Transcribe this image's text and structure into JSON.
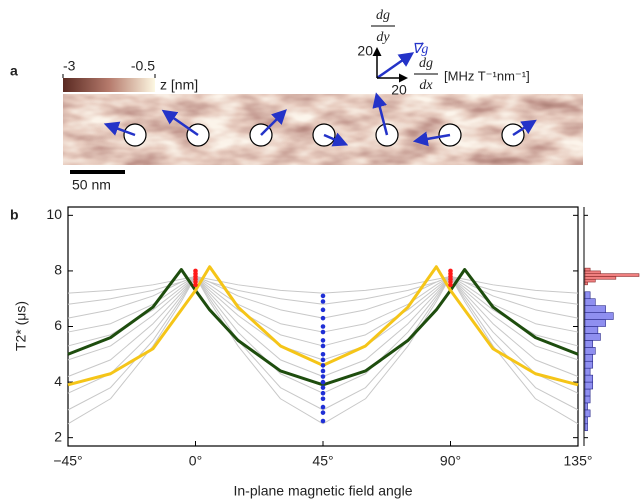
{
  "chart_data": [
    {
      "type": "vector_map",
      "panel_label": "a",
      "colorbar": {
        "label": "z [nm]",
        "lim": [
          -3,
          -0.5
        ],
        "ticks": [
          -3,
          -0.5
        ],
        "colors": [
          "#5a2a22",
          "#b57a6c",
          "#fdf8e2"
        ]
      },
      "scale_bar": "50 nm",
      "vectors": {
        "color": "#2433c8",
        "dx": [
          -19,
          -23,
          16,
          14,
          -7,
          -23,
          14
        ],
        "dy": [
          7,
          16,
          16,
          -6,
          27,
          -4,
          9
        ]
      },
      "legend": {
        "x_label": {
          "numerator": "dg",
          "denominator": "dx"
        },
        "y_label": {
          "numerator": "dg",
          "denominator": "dy"
        },
        "x_tick": 20,
        "y_tick": 20,
        "vector_label": "∇⃗g",
        "units": "[MHz T⁻¹nm⁻¹]"
      }
    },
    {
      "type": "line",
      "panel_label": "b",
      "xlabel": "In-plane magnetic field angle",
      "ylabel": "T2* (μs)",
      "xlim": [
        -45,
        135
      ],
      "ylim": [
        1.7,
        10.3
      ],
      "xticks": [
        {
          "value": -45,
          "label": "−45°"
        },
        {
          "value": 0,
          "label": "0°"
        },
        {
          "value": 45,
          "label": "45°"
        },
        {
          "value": 90,
          "label": "90°"
        },
        {
          "value": 135,
          "label": "135°"
        }
      ],
      "yticks": [
        2,
        4,
        6,
        8,
        10
      ],
      "x": [
        -45,
        -30,
        -15,
        -5,
        0,
        5,
        15,
        30,
        45,
        60,
        75,
        85,
        90,
        95,
        105,
        120,
        135
      ],
      "series": [
        {
          "color": "#c8c8c8",
          "values": [
            2.5,
            3.4,
            5.3,
            6.9,
            7.8,
            6.9,
            5.3,
            3.4,
            2.5,
            3.4,
            5.3,
            6.9,
            7.8,
            6.9,
            5.3,
            3.4,
            2.5
          ]
        },
        {
          "color": "#c8c8c8",
          "values": [
            3.0,
            3.8,
            5.5,
            7.0,
            7.8,
            7.0,
            5.5,
            3.8,
            3.0,
            3.8,
            5.5,
            7.0,
            7.8,
            7.0,
            5.5,
            3.8,
            3.0
          ]
        },
        {
          "color": "#c8c8c8",
          "values": [
            3.6,
            4.3,
            5.8,
            7.1,
            7.8,
            7.1,
            5.8,
            4.3,
            3.6,
            4.3,
            5.8,
            7.1,
            7.8,
            7.1,
            5.8,
            4.3,
            3.6
          ]
        },
        {
          "color": "#c8c8c8",
          "values": [
            4.2,
            4.8,
            6.1,
            7.2,
            7.8,
            7.2,
            6.1,
            4.8,
            4.2,
            4.8,
            6.1,
            7.2,
            7.8,
            7.2,
            6.1,
            4.8,
            4.2
          ]
        },
        {
          "color": "#c8c8c8",
          "values": [
            4.8,
            5.3,
            6.4,
            7.3,
            7.8,
            7.3,
            6.4,
            5.3,
            4.8,
            5.3,
            6.4,
            7.3,
            7.8,
            7.3,
            6.4,
            5.3,
            4.8
          ]
        },
        {
          "color": "#c8c8c8",
          "values": [
            5.3,
            5.7,
            6.6,
            7.4,
            7.8,
            7.4,
            6.6,
            5.7,
            5.3,
            5.7,
            6.6,
            7.4,
            7.8,
            7.4,
            6.6,
            5.7,
            5.3
          ]
        },
        {
          "color": "#c8c8c8",
          "values": [
            5.8,
            6.1,
            6.8,
            7.5,
            7.8,
            7.5,
            6.8,
            6.1,
            5.8,
            6.1,
            6.8,
            7.5,
            7.8,
            7.5,
            6.8,
            6.1,
            5.8
          ]
        },
        {
          "color": "#c8c8c8",
          "values": [
            6.3,
            6.6,
            7.1,
            7.6,
            7.8,
            7.6,
            7.1,
            6.6,
            6.3,
            6.6,
            7.1,
            7.6,
            7.8,
            7.6,
            7.1,
            6.6,
            6.3
          ]
        },
        {
          "color": "#c8c8c8",
          "values": [
            6.8,
            7.0,
            7.3,
            7.6,
            7.8,
            7.6,
            7.3,
            7.0,
            6.8,
            7.0,
            7.3,
            7.6,
            7.8,
            7.6,
            7.3,
            7.0,
            6.8
          ]
        },
        {
          "color": "#c8c8c8",
          "values": [
            7.2,
            7.3,
            7.5,
            7.7,
            7.8,
            7.7,
            7.5,
            7.3,
            7.2,
            7.3,
            7.5,
            7.7,
            7.8,
            7.7,
            7.5,
            7.3,
            7.2
          ]
        },
        {
          "color": "#1e4d0e",
          "values": [
            5.0,
            5.6,
            6.7,
            8.05,
            7.3,
            6.6,
            5.5,
            4.4,
            3.9,
            4.4,
            5.5,
            6.6,
            7.3,
            8.05,
            6.7,
            5.6,
            5.0
          ]
        },
        {
          "color": "#f5c518",
          "values": [
            3.9,
            4.3,
            5.2,
            6.6,
            7.3,
            8.15,
            6.7,
            5.3,
            4.6,
            5.3,
            6.7,
            8.15,
            7.3,
            6.6,
            5.2,
            4.3,
            3.9
          ]
        }
      ],
      "points": [
        {
          "color": "#1f2fd6",
          "x": [
            45,
            45,
            45,
            45,
            45,
            45,
            45,
            45,
            45,
            45,
            45,
            45,
            45,
            45,
            45,
            45,
            45,
            45,
            45,
            45
          ],
          "values": [
            2.6,
            2.9,
            3.1,
            3.4,
            3.6,
            3.8,
            4.0,
            4.2,
            4.4,
            4.6,
            4.8,
            5.0,
            5.3,
            5.5,
            5.8,
            6.0,
            6.3,
            6.6,
            6.9,
            7.1
          ]
        },
        {
          "color": "#ff1a1a",
          "x": [
            0,
            0,
            0,
            0,
            0,
            0,
            90,
            90,
            90,
            90,
            90,
            90
          ],
          "values": [
            7.5,
            7.6,
            7.7,
            7.8,
            7.9,
            8.0,
            7.5,
            7.6,
            7.7,
            7.8,
            7.9,
            8.0
          ]
        }
      ],
      "histograms": [
        {
          "color": "#8f8ff0",
          "edge_color": "#2a2a8a",
          "bins": [
            2.25,
            2.5,
            2.75,
            3.0,
            3.25,
            3.5,
            3.75,
            4.0,
            4.25,
            4.5,
            4.75,
            5.0,
            5.25,
            5.5,
            5.75,
            6.0,
            6.25,
            6.5,
            6.75,
            7.0,
            7.25
          ],
          "counts": [
            1,
            1,
            2,
            1,
            2,
            2,
            3,
            3,
            2,
            3,
            3,
            4,
            3,
            6,
            5,
            8,
            11,
            8,
            4,
            2
          ]
        },
        {
          "color": "#f08080",
          "edge_color": "#8a2a2a",
          "bins": [
            7.5,
            7.6,
            7.7,
            7.8,
            7.9,
            8.0,
            8.1
          ],
          "counts": [
            1,
            4,
            12,
            21,
            6,
            2
          ]
        }
      ]
    }
  ]
}
